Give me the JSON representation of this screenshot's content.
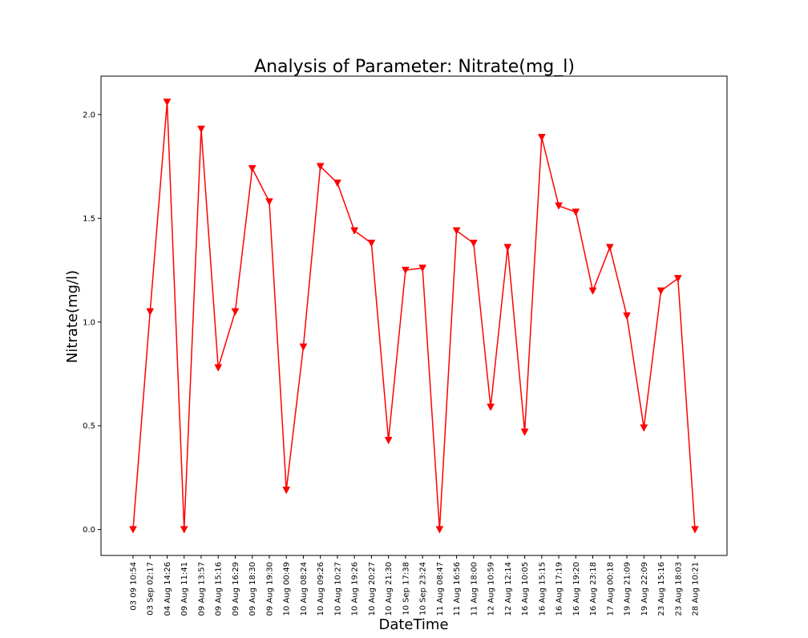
{
  "chart_data": {
    "type": "line",
    "title": "Analysis of Parameter: Nitrate(mg_l)",
    "xlabel": "DateTime",
    "ylabel": "Nitrate(mg/l)",
    "ylim": [
      -0.125,
      2.185
    ],
    "yticks": [
      0.0,
      0.5,
      1.0,
      1.5,
      2.0
    ],
    "ytick_labels": [
      "0.0",
      "0.5",
      "1.0",
      "1.5",
      "2.0"
    ],
    "grid": false,
    "legend": false,
    "marker": "triangle-down",
    "color": "#ff0000",
    "categories": [
      "03 09 10:54",
      "03 Sep 02:17",
      "04 Aug 14:26",
      "09 Aug 11:41",
      "09 Aug 13:57",
      "09 Aug 15:16",
      "09 Aug 16:29",
      "09 Aug 18:30",
      "09 Aug 19:30",
      "10 Aug 00:49",
      "10 Aug 08:24",
      "10 Aug 09:26",
      "10 Aug 10:27",
      "10 Aug 19:26",
      "10 Aug 20:27",
      "10 Aug 21:30",
      "10 Sep 17:38",
      "10 Sep 23:24",
      "11 Aug 08:47",
      "11 Aug 16:56",
      "11 Aug 18:00",
      "12 Aug 10:59",
      "12 Aug 12:14",
      "16 Aug 10:05",
      "16 Aug 15:15",
      "16 Aug 17:19",
      "16 Aug 19:20",
      "16 Aug 23:18",
      "17 Aug 00:18",
      "19 Aug 21:09",
      "19 Aug 22:09",
      "23 Aug 15:16",
      "23 Aug 18:03",
      "28 Aug 10:21"
    ],
    "values": [
      0.0,
      1.05,
      2.06,
      0.0,
      1.93,
      0.78,
      1.05,
      1.74,
      1.58,
      0.19,
      0.88,
      1.75,
      1.67,
      1.44,
      1.38,
      0.43,
      1.25,
      1.26,
      0.0,
      1.44,
      1.38,
      0.59,
      1.36,
      0.47,
      1.89,
      1.56,
      1.53,
      1.15,
      1.36,
      1.03,
      0.49,
      1.15,
      1.21,
      0.0
    ]
  }
}
